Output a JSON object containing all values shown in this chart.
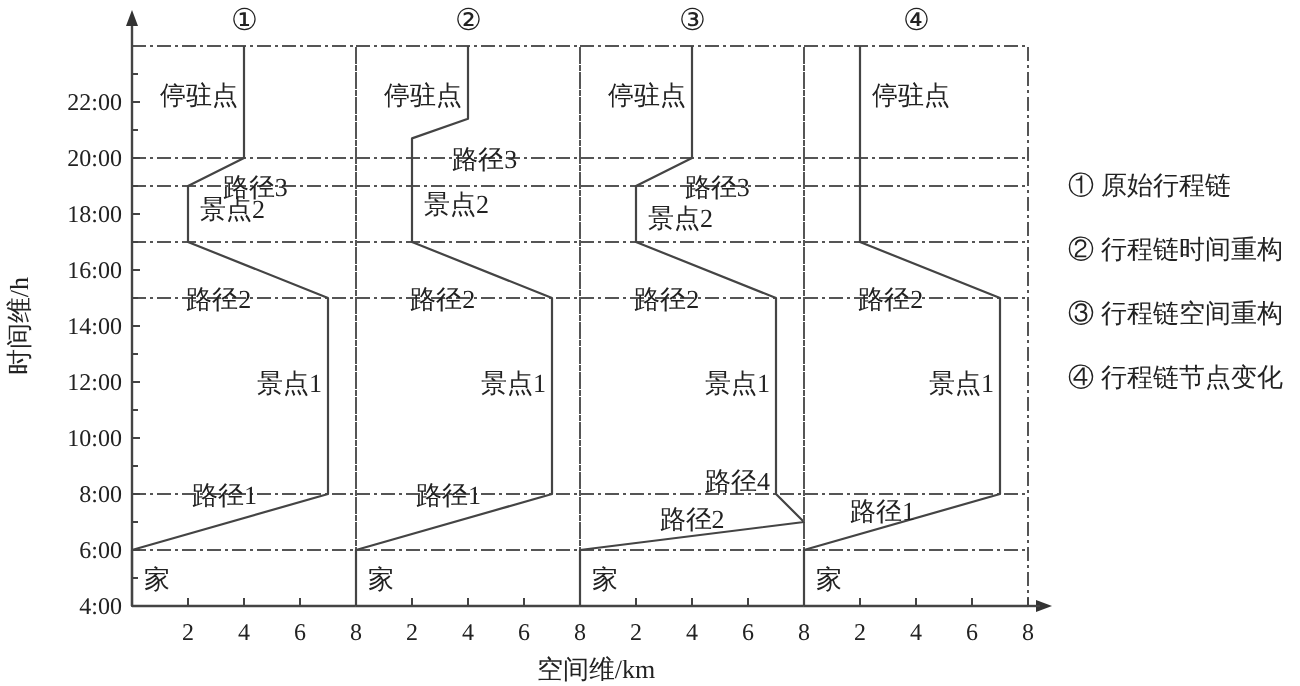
{
  "chart_data": [
    {
      "type": "line",
      "title": "①",
      "ylabel": "时间维/h",
      "xlim": [
        0,
        8
      ],
      "xticks": [
        2,
        4,
        6,
        8
      ],
      "ylim": [
        4,
        24
      ],
      "yticks": [
        {
          "value": 4,
          "label": "4:00"
        },
        {
          "value": 5,
          "label": null
        },
        {
          "value": 6,
          "label": "6:00"
        },
        {
          "value": 7,
          "label": null
        },
        {
          "value": 8,
          "label": "8:00"
        },
        {
          "value": 9,
          "label": null
        },
        {
          "value": 10,
          "label": "10:00"
        },
        {
          "value": 11,
          "label": null
        },
        {
          "value": 12,
          "label": "12:00"
        },
        {
          "value": 13,
          "label": null
        },
        {
          "value": 14,
          "label": "14:00"
        },
        {
          "value": 15,
          "label": null
        },
        {
          "value": 16,
          "label": "16:00"
        },
        {
          "value": 17,
          "label": null
        },
        {
          "value": 18,
          "label": "18:00"
        },
        {
          "value": 19,
          "label": null
        },
        {
          "value": 20,
          "label": "20:00"
        },
        {
          "value": 21,
          "label": null
        },
        {
          "value": 22,
          "label": "22:00"
        },
        {
          "value": 23,
          "label": null
        }
      ],
      "series": [
        {
          "color": "#444444",
          "x": [
            0,
            0,
            7,
            7,
            2,
            2,
            4,
            4
          ],
          "values": [
            4,
            6,
            8,
            15,
            17,
            19,
            20,
            24
          ]
        }
      ],
      "ref_lines": [
        {
          "axis": "y",
          "value": 6,
          "line_style": "dashed"
        },
        {
          "axis": "y",
          "value": 8,
          "line_style": "dashed"
        },
        {
          "axis": "y",
          "value": 15,
          "line_style": "dashed"
        },
        {
          "axis": "y",
          "value": 17,
          "line_style": "dashed"
        },
        {
          "axis": "y",
          "value": 19,
          "line_style": "dashed"
        },
        {
          "axis": "y",
          "value": 20,
          "line_style": "dashed"
        }
      ],
      "annotations": [
        {
          "text": "家",
          "x": 0,
          "y": 5
        },
        {
          "text": "路径1",
          "x": 3.3,
          "y": 8
        },
        {
          "text": "景点1",
          "x": 7,
          "y": 12
        },
        {
          "text": "路径2",
          "x": 3.1,
          "y": 15
        },
        {
          "text": "景点2",
          "x": 2,
          "y": 18.2
        },
        {
          "text": "路径3",
          "x": 4.4,
          "y": 19
        },
        {
          "text": "停驻点",
          "x": 4,
          "y": 22.3
        }
      ]
    },
    {
      "type": "line",
      "title": "②",
      "xlabel": "空间维/km",
      "tick_labels": "x",
      "xlim": [
        0,
        8
      ],
      "xticks": [
        2,
        4,
        6,
        8
      ],
      "ylim": [
        4,
        24
      ],
      "series": [
        {
          "color": "#444444",
          "x": [
            0,
            0,
            7,
            7,
            2,
            2,
            4,
            4
          ],
          "values": [
            4,
            6,
            8,
            15,
            17,
            20.7,
            21.4,
            24
          ]
        }
      ],
      "ref_lines": [
        {
          "axis": "y",
          "value": 6,
          "line_style": "dashed"
        },
        {
          "axis": "y",
          "value": 8,
          "line_style": "dashed"
        },
        {
          "axis": "y",
          "value": 15,
          "line_style": "dashed"
        },
        {
          "axis": "y",
          "value": 17,
          "line_style": "dashed"
        },
        {
          "axis": "y",
          "value": 19,
          "line_style": "dashed"
        },
        {
          "axis": "y",
          "value": 20,
          "line_style": "dashed"
        }
      ],
      "annotations": [
        {
          "text": "家",
          "x": 0,
          "y": 5
        },
        {
          "text": "路径1",
          "x": 3.3,
          "y": 8
        },
        {
          "text": "景点1",
          "x": 7,
          "y": 12
        },
        {
          "text": "路径2",
          "x": 3.1,
          "y": 15
        },
        {
          "text": "景点2",
          "x": 2,
          "y": 18.4
        },
        {
          "text": "路径3",
          "x": 4.6,
          "y": 20
        },
        {
          "text": "停驻点",
          "x": 4,
          "y": 22.3
        }
      ]
    },
    {
      "type": "line",
      "title": "③",
      "tick_labels": "x",
      "xlim": [
        0,
        8
      ],
      "xticks": [
        2,
        4,
        6,
        8
      ],
      "ylim": [
        4,
        24
      ],
      "series": [
        {
          "color": "#444444",
          "x": [
            0,
            0,
            8,
            7,
            7,
            2,
            2,
            4,
            4
          ],
          "values": [
            4,
            6,
            7,
            8,
            15,
            17,
            19,
            20,
            24
          ]
        }
      ],
      "ref_lines": [
        {
          "axis": "y",
          "value": 6,
          "line_style": "dashed"
        },
        {
          "axis": "y",
          "value": 8,
          "line_style": "dashed"
        },
        {
          "axis": "y",
          "value": 15,
          "line_style": "dashed"
        },
        {
          "axis": "y",
          "value": 17,
          "line_style": "dashed"
        },
        {
          "axis": "y",
          "value": 19,
          "line_style": "dashed"
        },
        {
          "axis": "y",
          "value": 20,
          "line_style": "dashed"
        }
      ],
      "annotations": [
        {
          "text": "家",
          "x": 0,
          "y": 5
        },
        {
          "text": "路径2",
          "x": 4,
          "y": 6.5
        },
        {
          "text": "路径4",
          "x": 7,
          "y": 8.5
        },
        {
          "text": "景点1",
          "x": 7,
          "y": 12
        },
        {
          "text": "路径2",
          "x": 3.1,
          "y": 15
        },
        {
          "text": "景点2",
          "x": 2,
          "y": 17.9
        },
        {
          "text": "路径3",
          "x": 4.9,
          "y": 19
        },
        {
          "text": "停驻点",
          "x": 4,
          "y": 22.3
        }
      ]
    },
    {
      "type": "line",
      "title": "④",
      "tick_labels": "x",
      "xlim": [
        0,
        8
      ],
      "xticks": [
        2,
        4,
        6,
        8
      ],
      "ylim": [
        4,
        24
      ],
      "series": [
        {
          "color": "#444444",
          "x": [
            0,
            0,
            7,
            7,
            2,
            2
          ],
          "values": [
            4,
            6,
            8,
            15,
            17,
            24
          ]
        }
      ],
      "ref_lines": [
        {
          "axis": "y",
          "value": 6,
          "line_style": "dashed"
        },
        {
          "axis": "y",
          "value": 8,
          "line_style": "dashed"
        },
        {
          "axis": "y",
          "value": 15,
          "line_style": "dashed"
        },
        {
          "axis": "y",
          "value": 17,
          "line_style": "dashed"
        },
        {
          "axis": "y",
          "value": 19,
          "line_style": "dashed"
        },
        {
          "axis": "y",
          "value": 20,
          "line_style": "dashed"
        }
      ],
      "annotations": [
        {
          "text": "家",
          "x": 0,
          "y": 5
        },
        {
          "text": "路径1",
          "x": 2.8,
          "y": 6.8
        },
        {
          "text": "景点1",
          "x": 7,
          "y": 12
        },
        {
          "text": "路径2",
          "x": 3.1,
          "y": 15
        },
        {
          "text": "停驻点",
          "x": 2,
          "y": 22.3
        }
      ]
    },
    {
      "type": "other",
      "annotations": [
        "① 原始行程链",
        "② 行程链时间重构",
        "③ 行程链空间重构",
        "④ 行程链节点变化"
      ]
    }
  ]
}
